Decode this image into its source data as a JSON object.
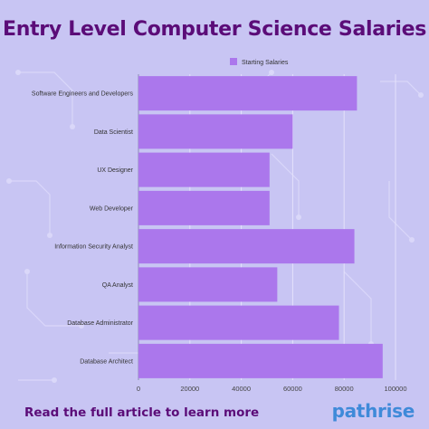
{
  "title": "Entry Level Computer Science Salaries",
  "footer": {
    "cta_text": "Read the full article to learn more",
    "brand": "pathrise"
  },
  "colors": {
    "background": "#c8c5f3",
    "bar": "#ab77ec",
    "title": "#5b0c78",
    "brand": "#3f8ad9"
  },
  "chart_data": {
    "type": "bar",
    "orientation": "horizontal",
    "categories": [
      "Software Engineers and Developers",
      "Data Scientist",
      "UX Designer",
      "Web Developer",
      "Information Security Analyst",
      "QA Analyst",
      "Database Administrator",
      "Database Architect"
    ],
    "series": [
      {
        "name": "Starting Salaries",
        "values": [
          85000,
          60000,
          51000,
          51000,
          84000,
          54000,
          78000,
          95000
        ]
      }
    ],
    "xlim": [
      0,
      100000
    ],
    "xticks": [
      "0",
      "20000",
      "40000",
      "60000",
      "80000",
      "100000"
    ],
    "grid": true,
    "legend": "top-right"
  }
}
